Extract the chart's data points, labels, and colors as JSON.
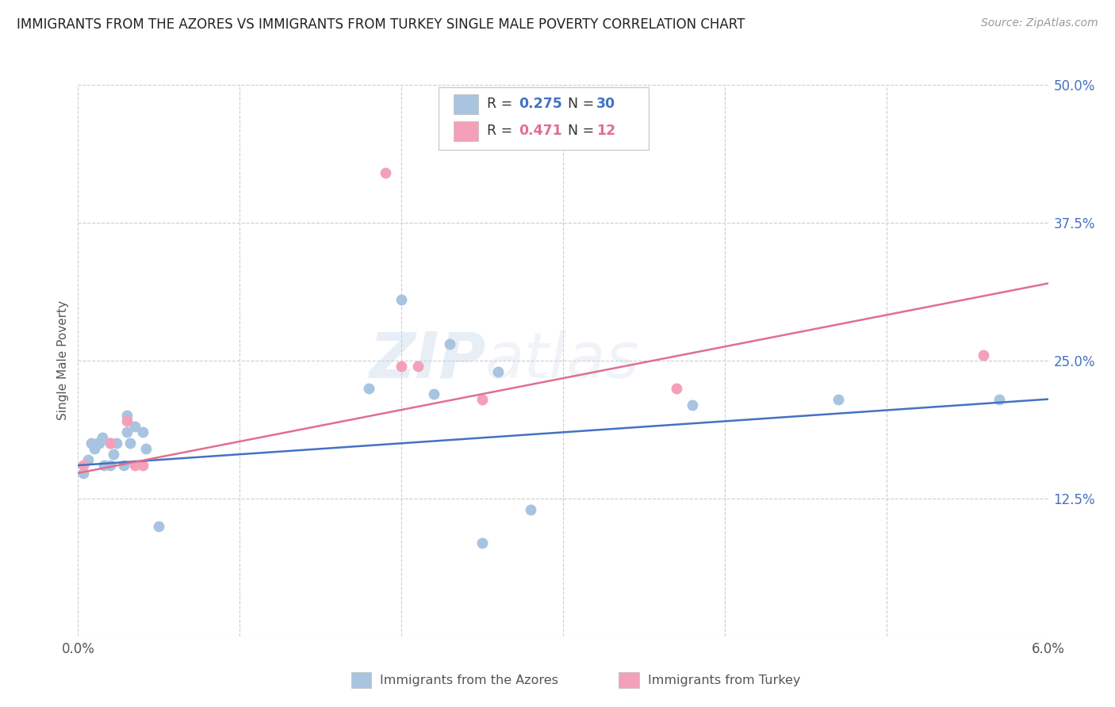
{
  "title": "IMMIGRANTS FROM THE AZORES VS IMMIGRANTS FROM TURKEY SINGLE MALE POVERTY CORRELATION CHART",
  "source": "Source: ZipAtlas.com",
  "ylabel": "Single Male Poverty",
  "xlim": [
    0.0,
    0.06
  ],
  "ylim": [
    0.0,
    0.5
  ],
  "xticks": [
    0.0,
    0.01,
    0.02,
    0.03,
    0.04,
    0.05,
    0.06
  ],
  "yticks_right": [
    0.0,
    0.125,
    0.25,
    0.375,
    0.5
  ],
  "yticklabels_right": [
    "",
    "12.5%",
    "25.0%",
    "37.5%",
    "50.0%"
  ],
  "azores_color": "#a8c4e0",
  "turkey_color": "#f4a0b8",
  "trend_azores_color": "#4472c4",
  "trend_turkey_color": "#e07090",
  "background_color": "#ffffff",
  "watermark_zip": "ZIP",
  "watermark_atlas": "atlas",
  "azores_x": [
    0.0003,
    0.0006,
    0.0008,
    0.001,
    0.0012,
    0.0013,
    0.0015,
    0.0016,
    0.002,
    0.002,
    0.0022,
    0.0024,
    0.0028,
    0.003,
    0.003,
    0.0032,
    0.0035,
    0.004,
    0.0042,
    0.005,
    0.018,
    0.02,
    0.022,
    0.023,
    0.025,
    0.026,
    0.028,
    0.038,
    0.047,
    0.057
  ],
  "azores_y": [
    0.148,
    0.16,
    0.175,
    0.17,
    0.175,
    0.175,
    0.18,
    0.155,
    0.175,
    0.155,
    0.165,
    0.175,
    0.155,
    0.2,
    0.185,
    0.175,
    0.19,
    0.185,
    0.17,
    0.1,
    0.225,
    0.305,
    0.22,
    0.265,
    0.085,
    0.24,
    0.115,
    0.21,
    0.215,
    0.215
  ],
  "turkey_x": [
    0.0003,
    0.002,
    0.003,
    0.0035,
    0.004,
    0.019,
    0.02,
    0.021,
    0.025,
    0.037,
    0.056
  ],
  "turkey_y": [
    0.155,
    0.175,
    0.195,
    0.155,
    0.155,
    0.42,
    0.245,
    0.245,
    0.215,
    0.225,
    0.255
  ],
  "azores_trend_x": [
    0.0,
    0.06
  ],
  "azores_trend_y": [
    0.155,
    0.215
  ],
  "turkey_trend_x": [
    0.0,
    0.06
  ],
  "turkey_trend_y": [
    0.148,
    0.32
  ]
}
